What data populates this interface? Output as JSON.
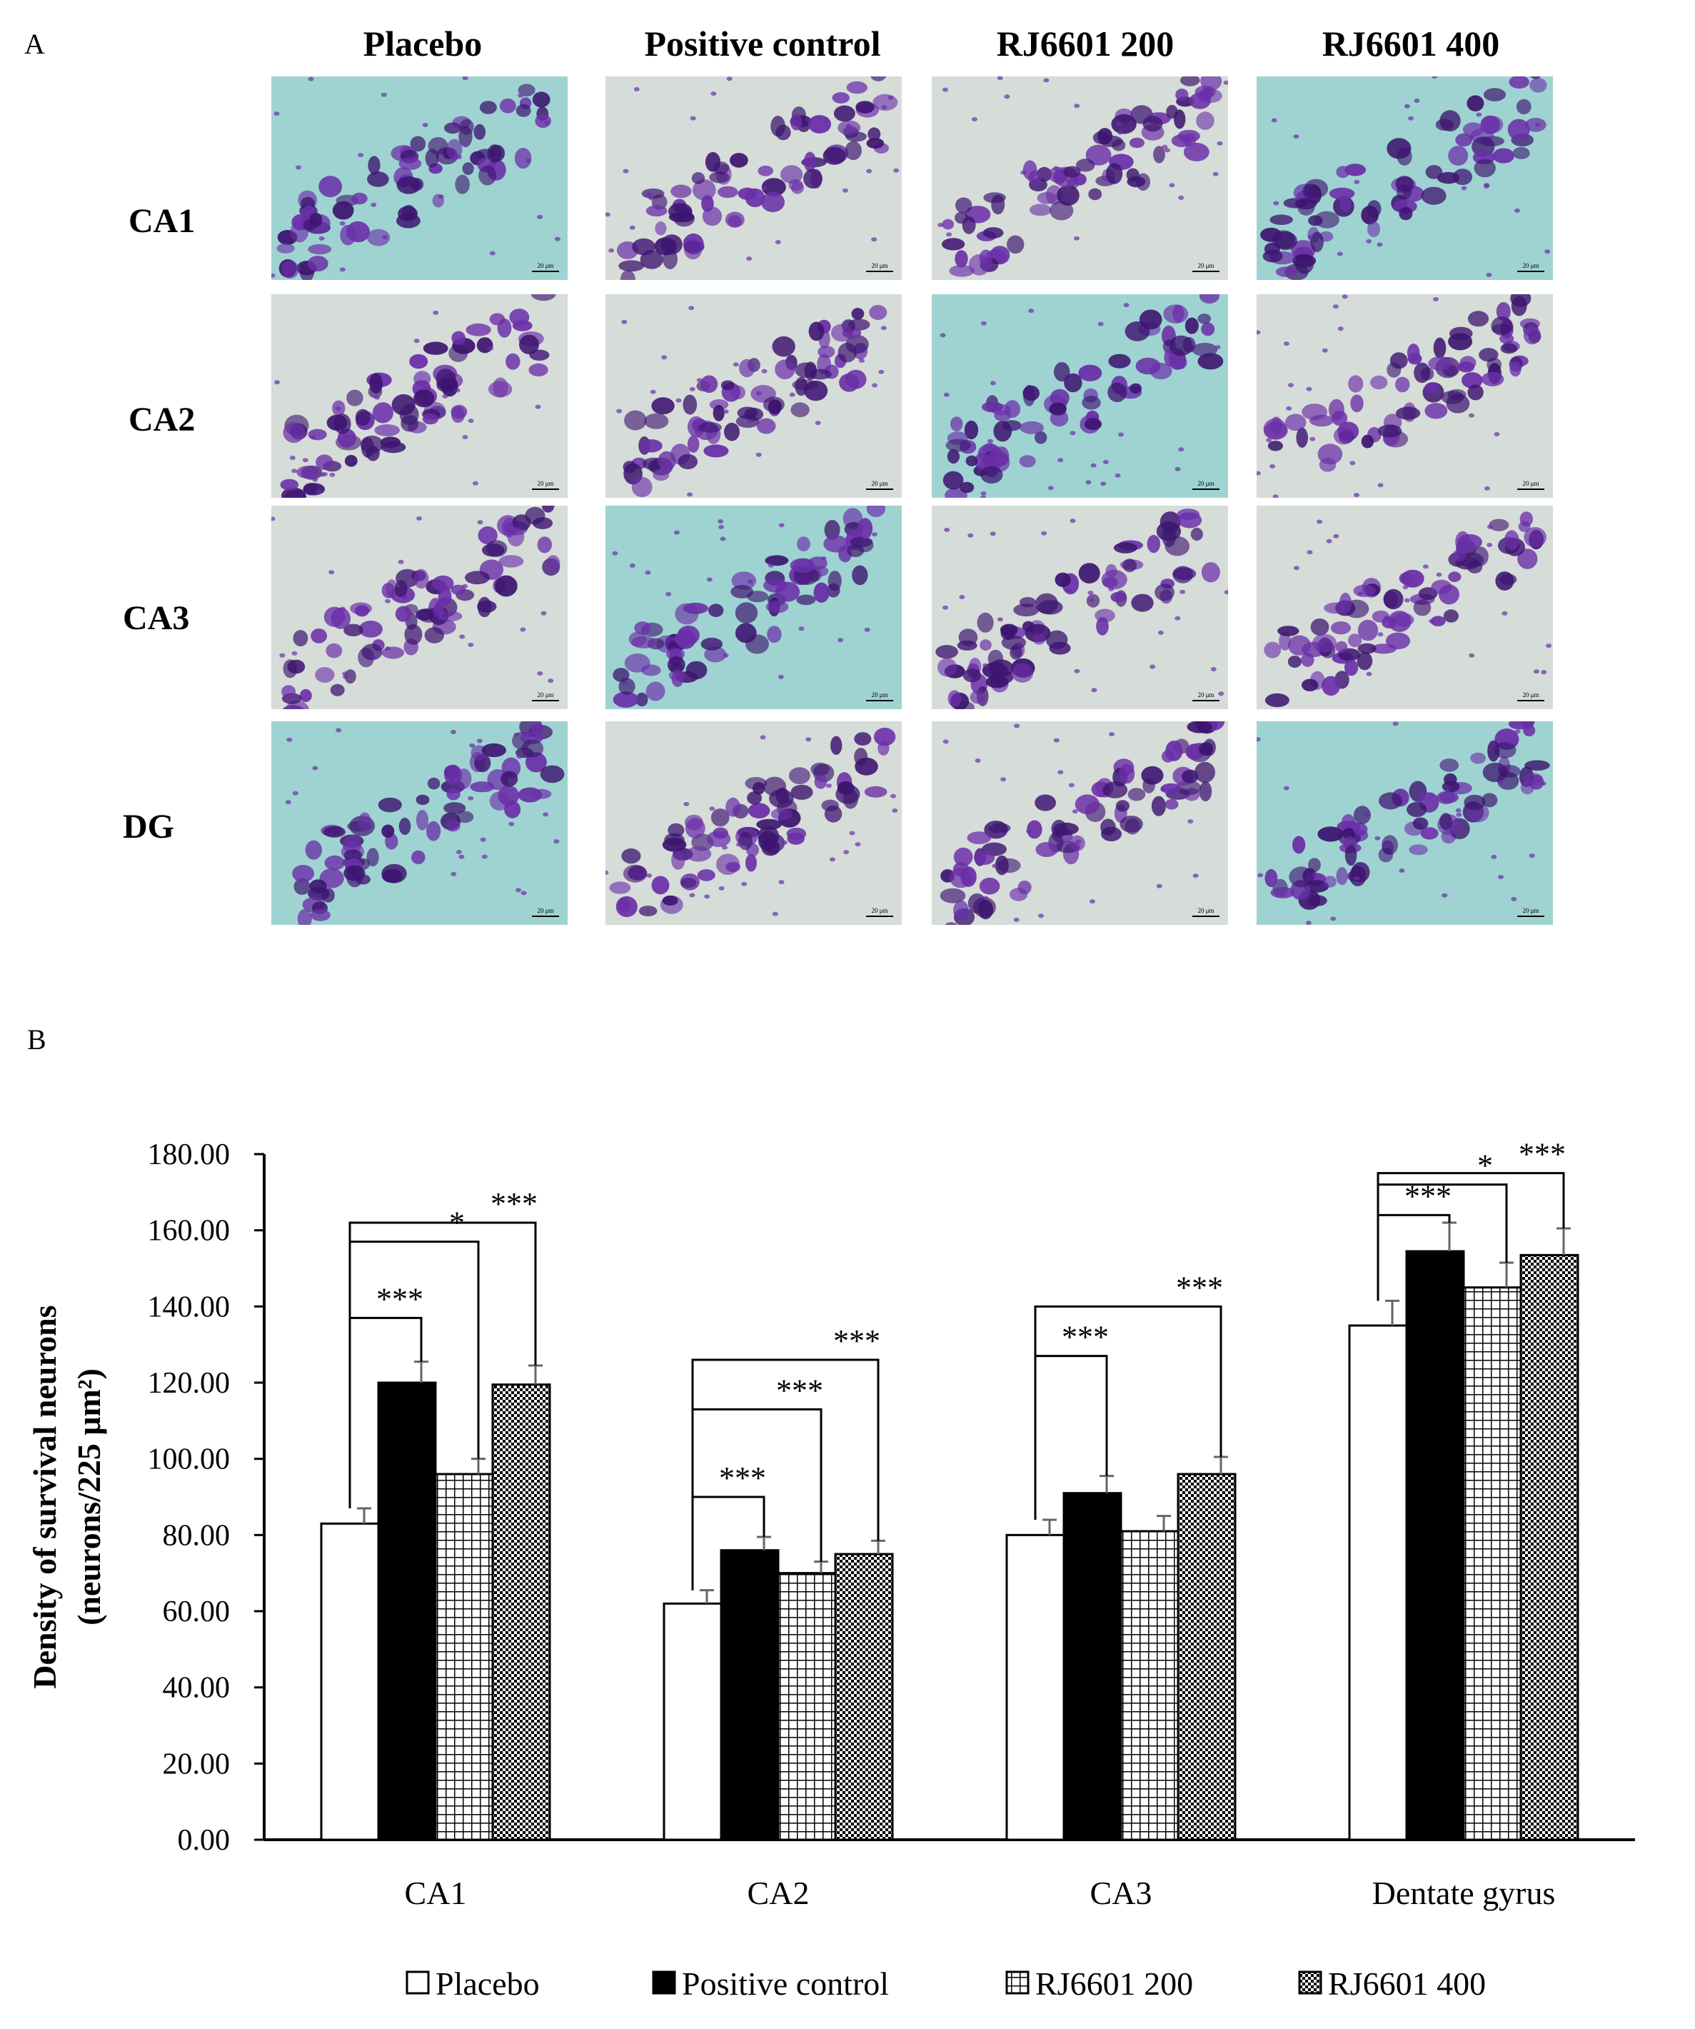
{
  "panels": {
    "a": "A",
    "b": "B"
  },
  "micrograph_grid": {
    "columns": [
      "Placebo",
      "Positive control",
      "RJ6601 200",
      "RJ6601 400"
    ],
    "rows": [
      "CA1",
      "CA2",
      "CA3",
      "DG"
    ],
    "scale_bar": "20 μm",
    "stain_colors": {
      "background_teal": "#9fd3d1",
      "background_grey": "#d6dcd8",
      "neuron_purple": "#6a2fa8",
      "neuron_dark": "#3d1570"
    }
  },
  "chart_data": {
    "type": "bar",
    "categories": [
      "CA1",
      "CA2",
      "CA3",
      "Dentate gyrus"
    ],
    "series": [
      {
        "name": "Placebo",
        "values": [
          83,
          62,
          80,
          135
        ],
        "errors": [
          4,
          3.5,
          4,
          6.5
        ],
        "pattern": "open"
      },
      {
        "name": "Positive control",
        "values": [
          120,
          76,
          91,
          154.5
        ],
        "errors": [
          5.5,
          3.5,
          4.5,
          7.5
        ],
        "pattern": "solid"
      },
      {
        "name": "RJ6601 200",
        "values": [
          96,
          70,
          81,
          145
        ],
        "errors": [
          4,
          3,
          4,
          6.5
        ],
        "pattern": "grid"
      },
      {
        "name": "RJ6601 400",
        "values": [
          119.5,
          75,
          96,
          153.5
        ],
        "errors": [
          5,
          3.5,
          4.5,
          7
        ]
      }
    ],
    "ylim": [
      0,
      180
    ],
    "yticks": [
      "0.00",
      "20.00",
      "40.00",
      "60.00",
      "80.00",
      "100.00",
      "120.00",
      "140.00",
      "160.00",
      "180.00"
    ],
    "ylabel_line1": "Density of survival neurons",
    "ylabel_line2": "(neurons/225 μm²)",
    "xlabel": "",
    "legend_position": "bottom",
    "significance": [
      {
        "category": 0,
        "from": 0,
        "to": 1,
        "level": 137,
        "label": "***"
      },
      {
        "category": 0,
        "from": 0,
        "to": 2,
        "level": 157,
        "label": "*"
      },
      {
        "category": 0,
        "from": 0,
        "to": 3,
        "level": 162,
        "label": "***"
      },
      {
        "category": 1,
        "from": 0,
        "to": 1,
        "level": 90,
        "label": "***"
      },
      {
        "category": 1,
        "from": 0,
        "to": 2,
        "level": 113,
        "label": "***"
      },
      {
        "category": 1,
        "from": 0,
        "to": 3,
        "level": 126,
        "label": "***"
      },
      {
        "category": 2,
        "from": 0,
        "to": 1,
        "level": 127,
        "label": "***"
      },
      {
        "category": 2,
        "from": 0,
        "to": 3,
        "level": 140,
        "label": "***"
      },
      {
        "category": 3,
        "from": 0,
        "to": 1,
        "level": 164,
        "label": "***"
      },
      {
        "category": 3,
        "from": 0,
        "to": 2,
        "level": 172,
        "label": "*"
      },
      {
        "category": 3,
        "from": 0,
        "to": 3,
        "level": 175,
        "label": "***"
      }
    ]
  }
}
